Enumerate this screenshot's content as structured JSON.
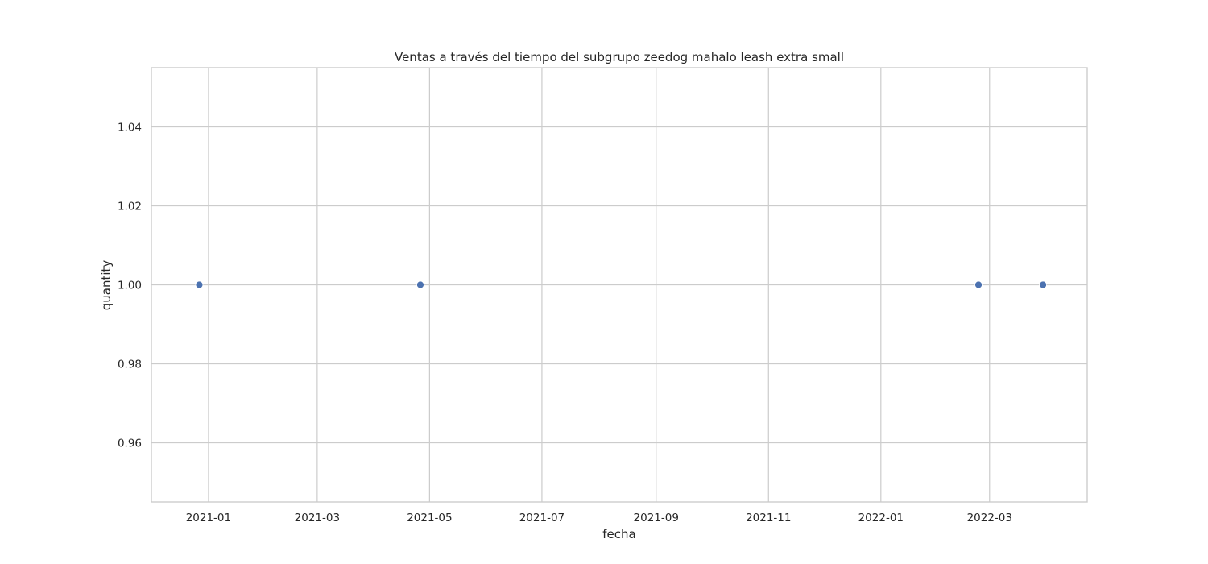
{
  "chart_data": {
    "type": "scatter",
    "title": "Ventas a través del tiempo del subgrupo zeedog mahalo leash extra small",
    "xlabel": "fecha",
    "ylabel": "quantity",
    "x_type": "date",
    "xlim": [
      "2020-12-01",
      "2022-04-23"
    ],
    "ylim": [
      0.945,
      1.055
    ],
    "x_ticks": [
      "2021-01-01",
      "2021-03-01",
      "2021-05-01",
      "2021-07-01",
      "2021-09-01",
      "2021-11-01",
      "2022-01-01",
      "2022-03-01"
    ],
    "x_tick_labels": [
      "2021-01",
      "2021-03",
      "2021-05",
      "2021-07",
      "2021-09",
      "2021-11",
      "2022-01",
      "2022-03"
    ],
    "y_ticks": [
      0.96,
      0.98,
      1.0,
      1.02,
      1.04
    ],
    "y_tick_labels": [
      "0.96",
      "0.98",
      "1.00",
      "1.02",
      "1.04"
    ],
    "grid": true,
    "series": [
      {
        "color": "#4c72b0",
        "points": [
          {
            "x": "2020-12-27",
            "y": 1.0
          },
          {
            "x": "2021-04-26",
            "y": 1.0
          },
          {
            "x": "2022-02-23",
            "y": 1.0
          },
          {
            "x": "2022-03-30",
            "y": 1.0
          }
        ]
      }
    ]
  }
}
